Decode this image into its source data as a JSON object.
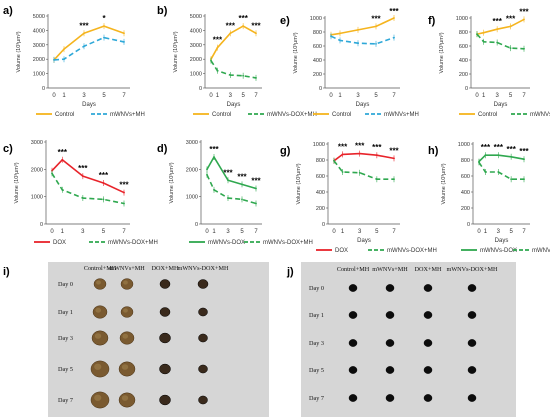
{
  "colors": {
    "control": "#f5b41e",
    "mwnvs_mh": "#2ea8d8",
    "dox": "#e8232a",
    "mwnvs_dox_mh": "#2fa84f",
    "mwnvs_dox": "#2fa84f",
    "sig": "#000000",
    "photo_bg": "#d6d6d6"
  },
  "chart_data": [
    {
      "id": "a",
      "panel_label": "a)",
      "type": "line",
      "x": [
        0,
        1,
        3,
        5,
        7
      ],
      "xlabel": "Days",
      "ylabel": "Volume (10³μm³)",
      "ylim": [
        0,
        5000
      ],
      "yticks": [
        0,
        1000,
        2000,
        3000,
        4000,
        5000
      ],
      "grid": false,
      "legend": "bottom",
      "series": [
        {
          "name": "Control",
          "style": "control",
          "values": [
            1950,
            2700,
            3800,
            4300,
            3800
          ]
        },
        {
          "name": "mWNVs+MH",
          "style": "mwnvs_mh",
          "values": [
            1950,
            2000,
            2900,
            3500,
            3200
          ]
        }
      ],
      "significance": [
        {
          "x": 3,
          "text": "***"
        },
        {
          "x": 5,
          "text": "*"
        }
      ]
    },
    {
      "id": "b",
      "panel_label": "b)",
      "type": "line",
      "x": [
        0,
        1,
        3,
        5,
        7
      ],
      "xlabel": "Days",
      "ylabel": "Volume (10³μm³)",
      "ylim": [
        0,
        5000
      ],
      "yticks": [
        0,
        1000,
        2000,
        3000,
        4000,
        5000
      ],
      "grid": false,
      "legend": "bottom",
      "series": [
        {
          "name": "Control",
          "style": "control",
          "values": [
            2000,
            2800,
            3800,
            4300,
            3800
          ]
        },
        {
          "name": "mWNVs-DOX+MH",
          "style": "mwnvs_dox_mh",
          "values": [
            1900,
            1200,
            900,
            850,
            700
          ]
        }
      ],
      "significance": [
        {
          "x": 1,
          "text": "***"
        },
        {
          "x": 3,
          "text": "***"
        },
        {
          "x": 5,
          "text": "***"
        },
        {
          "x": 7,
          "text": "***"
        }
      ]
    },
    {
      "id": "c",
      "panel_label": "c)",
      "type": "line",
      "x": [
        0,
        1,
        3,
        5,
        7
      ],
      "xlabel": "",
      "ylabel": "Volume (10³μm³)",
      "ylim": [
        0,
        3000
      ],
      "yticks": [
        0,
        1000,
        2000,
        3000
      ],
      "grid": false,
      "legend": "bottom",
      "series": [
        {
          "name": "DOX",
          "style": "dox",
          "values": [
            1950,
            2350,
            1750,
            1500,
            1150
          ]
        },
        {
          "name": "mWNVs-DOX+MH",
          "style": "mwnvs_dox_mh",
          "values": [
            1850,
            1250,
            950,
            900,
            750
          ]
        }
      ],
      "significance": [
        {
          "x": 1,
          "text": "***"
        },
        {
          "x": 3,
          "text": "***"
        },
        {
          "x": 5,
          "text": "***"
        },
        {
          "x": 7,
          "text": "***"
        }
      ]
    },
    {
      "id": "d",
      "panel_label": "d)",
      "type": "line",
      "x": [
        0,
        1,
        3,
        5,
        7
      ],
      "xlabel": "",
      "ylabel": "Volume (10³μm³)",
      "ylim": [
        0,
        3000
      ],
      "yticks": [
        0,
        1000,
        2000,
        3000
      ],
      "grid": false,
      "legend": "bottom",
      "series": [
        {
          "name": "mWNVs-DOX",
          "style": "mwnvs_dox",
          "values": [
            2000,
            2450,
            1600,
            1450,
            1300
          ]
        },
        {
          "name": "mWNVs-DOX+MH",
          "style": "mwnvs_dox_mh",
          "values": [
            1800,
            1250,
            950,
            900,
            750
          ]
        }
      ],
      "significance": [
        {
          "x": 1,
          "text": "***"
        },
        {
          "x": 3,
          "text": "***"
        },
        {
          "x": 5,
          "text": "***"
        },
        {
          "x": 7,
          "text": "***"
        }
      ]
    },
    {
      "id": "e",
      "panel_label": "e)",
      "type": "line",
      "x": [
        0,
        1,
        3,
        5,
        7
      ],
      "xlabel": "Days",
      "ylabel": "Volume (10³μm³)",
      "ylim": [
        0,
        1000
      ],
      "yticks": [
        0,
        200,
        400,
        600,
        800,
        1000
      ],
      "grid": false,
      "legend": "bottom",
      "series": [
        {
          "name": "Control",
          "style": "control",
          "values": [
            760,
            780,
            830,
            880,
            1000
          ]
        },
        {
          "name": "mWNVs+MH",
          "style": "mwnvs_mh",
          "values": [
            740,
            680,
            640,
            630,
            720
          ]
        }
      ],
      "significance": [
        {
          "x": 5,
          "text": "***"
        },
        {
          "x": 7,
          "text": "***"
        }
      ]
    },
    {
      "id": "f",
      "panel_label": "f)",
      "type": "line",
      "x": [
        0,
        1,
        3,
        5,
        7
      ],
      "xlabel": "Days",
      "ylabel": "Volume (10³μm³)",
      "ylim": [
        0,
        1000
      ],
      "yticks": [
        0,
        200,
        400,
        600,
        800,
        1000
      ],
      "grid": false,
      "legend": "bottom",
      "series": [
        {
          "name": "Control",
          "style": "control",
          "values": [
            770,
            790,
            840,
            880,
            980
          ]
        },
        {
          "name": "mWNVs-DOX+MH",
          "style": "mwnvs_dox_mh",
          "values": [
            770,
            660,
            650,
            570,
            560
          ]
        }
      ],
      "significance": [
        {
          "x": 3,
          "text": "***"
        },
        {
          "x": 5,
          "text": "***"
        },
        {
          "x": 7,
          "text": "***"
        }
      ]
    },
    {
      "id": "g",
      "panel_label": "g)",
      "type": "line",
      "x": [
        0,
        1,
        3,
        5,
        7
      ],
      "xlabel": "Days",
      "ylabel": "Volume (10³μm³)",
      "ylim": [
        0,
        1000
      ],
      "yticks": [
        0,
        200,
        400,
        600,
        800,
        1000
      ],
      "grid": false,
      "legend": "bottom",
      "series": [
        {
          "name": "DOX",
          "style": "dox",
          "values": [
            790,
            870,
            880,
            860,
            820
          ]
        },
        {
          "name": "mWNVs-DOX+MH",
          "style": "mwnvs_dox_mh",
          "values": [
            790,
            650,
            640,
            560,
            560
          ]
        }
      ],
      "significance": [
        {
          "x": 1,
          "text": "***"
        },
        {
          "x": 3,
          "text": "***"
        },
        {
          "x": 5,
          "text": "***"
        },
        {
          "x": 7,
          "text": "***"
        }
      ]
    },
    {
      "id": "h",
      "panel_label": "h)",
      "type": "line",
      "x": [
        0,
        1,
        3,
        5,
        7
      ],
      "xlabel": "Days",
      "ylabel": "Volume (10³μm³)",
      "ylim": [
        0,
        1000
      ],
      "yticks": [
        0,
        200,
        400,
        600,
        800,
        1000
      ],
      "grid": false,
      "legend": "bottom",
      "series": [
        {
          "name": "mWNVs-DOX",
          "style": "mwnvs_dox",
          "values": [
            780,
            860,
            860,
            840,
            810
          ]
        },
        {
          "name": "mWNVs-DOX+MH",
          "style": "mwnvs_dox_mh",
          "values": [
            770,
            650,
            650,
            560,
            560
          ]
        }
      ],
      "significance": [
        {
          "x": 1,
          "text": "***"
        },
        {
          "x": 3,
          "text": "***"
        },
        {
          "x": 5,
          "text": "***"
        },
        {
          "x": 7,
          "text": "***"
        }
      ]
    }
  ],
  "photo_panels": [
    {
      "id": "i",
      "panel_label": "i)",
      "columns": [
        "Control+MH",
        "mWNVs+MH",
        "DOX+MH",
        "mWNVs-DOX+MH"
      ],
      "rows": [
        "Day 0",
        "Day 1",
        "Day 3",
        "Day 5",
        "Day 7"
      ]
    },
    {
      "id": "j",
      "panel_label": "j)",
      "columns": [
        "Control+MH",
        "mWNVs+MH",
        "DOX+MH",
        "mWNVs-DOX+MH"
      ],
      "rows": [
        "Day 0",
        "Day 1",
        "Day 3",
        "Day 5",
        "Day 7"
      ]
    }
  ]
}
